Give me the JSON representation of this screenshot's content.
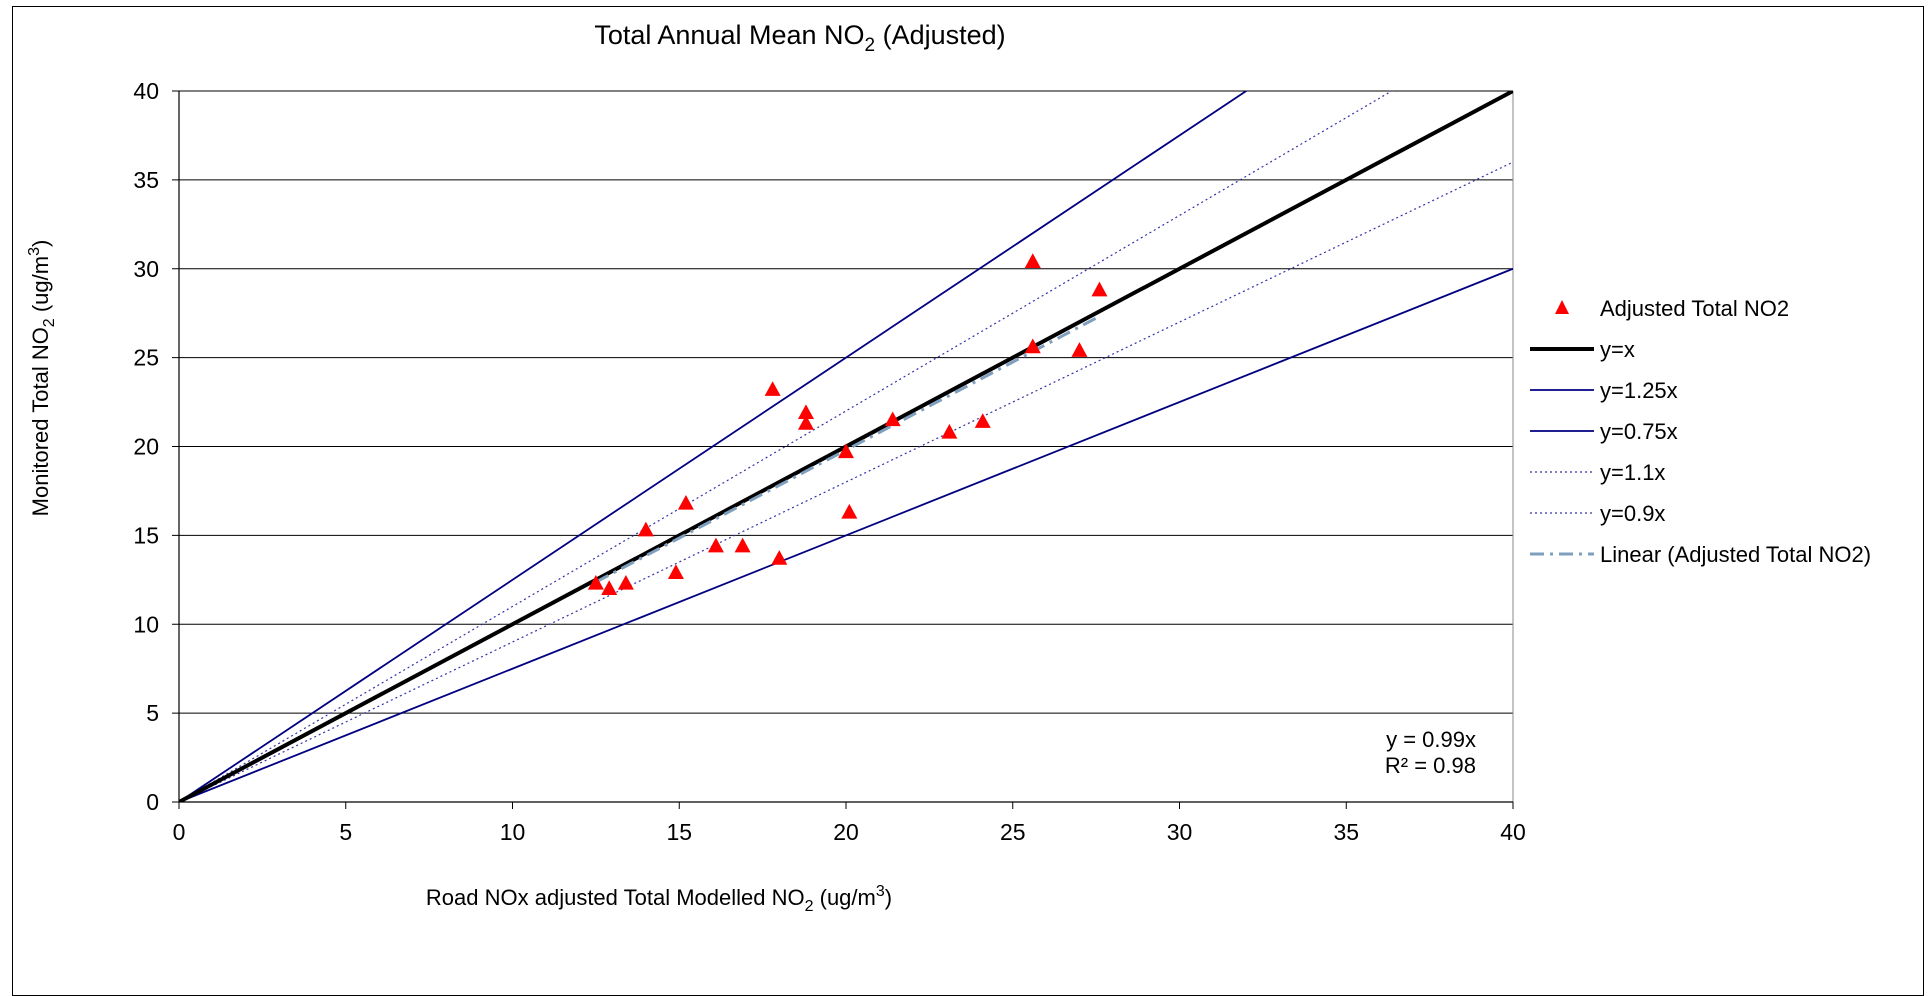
{
  "chart_data": {
    "type": "scatter",
    "title": {
      "main": "Total Annual Mean NO",
      "sub": "2",
      "tail": " (Adjusted)"
    },
    "xlabel": {
      "main": "Road NOx adjusted Total Modelled NO",
      "sub": "2",
      "tail": " (ug/m",
      "sup": "3",
      "end": ")"
    },
    "ylabel": {
      "main": "Monitored Total NO",
      "sub": "2",
      "tail": " (ug/m",
      "sup": "3",
      "end": ")"
    },
    "xlim": [
      0,
      40
    ],
    "ylim": [
      0,
      40
    ],
    "x_ticks": [
      0,
      5,
      10,
      15,
      20,
      25,
      30,
      35,
      40
    ],
    "y_ticks": [
      0,
      5,
      10,
      15,
      20,
      25,
      30,
      35,
      40
    ],
    "grid": {
      "horizontal": true,
      "vertical": false
    },
    "legend_position": "right",
    "series": [
      {
        "name": "Adjusted Total NO2",
        "kind": "scatter",
        "marker": "triangle",
        "color": "#ff0000",
        "points": [
          [
            12.5,
            12.3
          ],
          [
            12.9,
            12.0
          ],
          [
            13.4,
            12.3
          ],
          [
            14.0,
            15.3
          ],
          [
            14.9,
            12.9
          ],
          [
            15.2,
            16.8
          ],
          [
            16.1,
            14.4
          ],
          [
            16.9,
            14.4
          ],
          [
            17.8,
            23.2
          ],
          [
            18.0,
            13.7
          ],
          [
            18.8,
            21.3
          ],
          [
            18.8,
            21.9
          ],
          [
            20.0,
            19.7
          ],
          [
            20.1,
            16.3
          ],
          [
            21.4,
            21.5
          ],
          [
            23.1,
            20.8
          ],
          [
            24.1,
            21.4
          ],
          [
            25.6,
            30.4
          ],
          [
            25.6,
            25.6
          ],
          [
            27.0,
            25.4
          ],
          [
            27.6,
            28.8
          ]
        ]
      },
      {
        "name": "y=x",
        "kind": "line",
        "slope": 1.0,
        "color": "#000000",
        "width": 4,
        "dash": "none"
      },
      {
        "name": "y=1.25x",
        "kind": "line",
        "slope": 1.25,
        "color": "#000080",
        "width": 1.8,
        "dash": "none"
      },
      {
        "name": "y=0.75x",
        "kind": "line",
        "slope": 0.75,
        "color": "#000080",
        "width": 1.8,
        "dash": "none"
      },
      {
        "name": "y=1.1x",
        "kind": "line",
        "slope": 1.1,
        "color": "#3333aa",
        "width": 1.2,
        "dash": "2,3"
      },
      {
        "name": "y=0.9x",
        "kind": "line",
        "slope": 0.9,
        "color": "#3333aa",
        "width": 1.2,
        "dash": "2,3"
      },
      {
        "name": "Linear (Adjusted Total NO2)",
        "kind": "line",
        "slope": 0.99,
        "x_range": [
          12.5,
          27.6
        ],
        "color": "#7f9fbf",
        "width": 3,
        "dash": "14,6,3,6"
      }
    ],
    "annotations": [
      "y = 0.99x",
      "R² = 0.98"
    ]
  }
}
